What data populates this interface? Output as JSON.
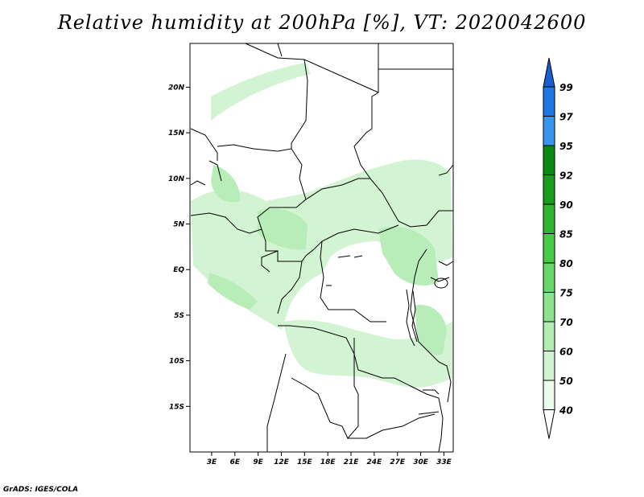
{
  "title": "Relative humidity at 200hPa [%], VT: 2020042600",
  "credit": "GrADS: IGES/COLA",
  "map": {
    "lat_labels": [
      "20N",
      "15N",
      "10N",
      "5N",
      "EQ",
      "5S",
      "10S",
      "15S"
    ],
    "lat_values": [
      20,
      15,
      10,
      5,
      0,
      -5,
      -10,
      -15
    ],
    "lon_labels": [
      "3E",
      "6E",
      "9E",
      "12E",
      "15E",
      "18E",
      "21E",
      "24E",
      "27E",
      "30E",
      "33E"
    ],
    "lon_values": [
      3,
      6,
      9,
      12,
      15,
      18,
      21,
      24,
      27,
      30,
      33
    ],
    "extent": {
      "lon_min": 0.2,
      "lon_max": 34.2,
      "lat_min": -20,
      "lat_max": 24.8
    }
  },
  "colorbar": {
    "levels": [
      "99",
      "97",
      "95",
      "92",
      "90",
      "85",
      "80",
      "75",
      "70",
      "60",
      "50",
      "40"
    ],
    "colors": [
      "#1a5fd0",
      "#1f78e6",
      "#3a95ee",
      "#0b8a12",
      "#169e1c",
      "#2fb52f",
      "#48cc48",
      "#6ad86a",
      "#8ee28e",
      "#b2ecb2",
      "#d0f4d0",
      "#ecfcec"
    ]
  }
}
